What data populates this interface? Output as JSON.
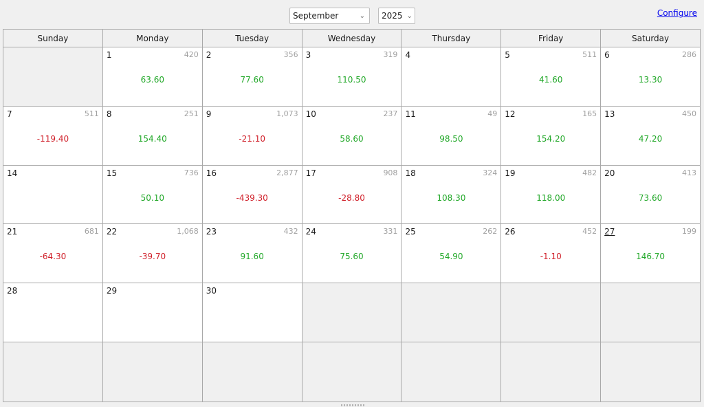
{
  "toolbar": {
    "month": "September",
    "year": "2025",
    "configure_label": "Configure"
  },
  "weekdays": [
    "Sunday",
    "Monday",
    "Tuesday",
    "Wednesday",
    "Thursday",
    "Friday",
    "Saturday"
  ],
  "colors": {
    "positive": "#22a829",
    "negative": "#d0202a",
    "count": "#a0a0a0",
    "link": "#0000ee"
  },
  "weeks": [
    [
      null,
      {
        "day": "1",
        "count": "420",
        "value": "63.60",
        "sign": "pos"
      },
      {
        "day": "2",
        "count": "356",
        "value": "77.60",
        "sign": "pos"
      },
      {
        "day": "3",
        "count": "319",
        "value": "110.50",
        "sign": "pos"
      },
      {
        "day": "4",
        "count": "",
        "value": "",
        "sign": ""
      },
      {
        "day": "5",
        "count": "511",
        "value": "41.60",
        "sign": "pos"
      },
      {
        "day": "6",
        "count": "286",
        "value": "13.30",
        "sign": "pos"
      }
    ],
    [
      {
        "day": "7",
        "count": "511",
        "value": "-119.40",
        "sign": "neg"
      },
      {
        "day": "8",
        "count": "251",
        "value": "154.40",
        "sign": "pos"
      },
      {
        "day": "9",
        "count": "1,073",
        "value": "-21.10",
        "sign": "neg"
      },
      {
        "day": "10",
        "count": "237",
        "value": "58.60",
        "sign": "pos"
      },
      {
        "day": "11",
        "count": "49",
        "value": "98.50",
        "sign": "pos"
      },
      {
        "day": "12",
        "count": "165",
        "value": "154.20",
        "sign": "pos"
      },
      {
        "day": "13",
        "count": "450",
        "value": "47.20",
        "sign": "pos"
      }
    ],
    [
      {
        "day": "14",
        "count": "",
        "value": "",
        "sign": ""
      },
      {
        "day": "15",
        "count": "736",
        "value": "50.10",
        "sign": "pos"
      },
      {
        "day": "16",
        "count": "2,877",
        "value": "-439.30",
        "sign": "neg"
      },
      {
        "day": "17",
        "count": "908",
        "value": "-28.80",
        "sign": "neg"
      },
      {
        "day": "18",
        "count": "324",
        "value": "108.30",
        "sign": "pos"
      },
      {
        "day": "19",
        "count": "482",
        "value": "118.00",
        "sign": "pos"
      },
      {
        "day": "20",
        "count": "413",
        "value": "73.60",
        "sign": "pos"
      }
    ],
    [
      {
        "day": "21",
        "count": "681",
        "value": "-64.30",
        "sign": "neg"
      },
      {
        "day": "22",
        "count": "1,068",
        "value": "-39.70",
        "sign": "neg"
      },
      {
        "day": "23",
        "count": "432",
        "value": "91.60",
        "sign": "pos"
      },
      {
        "day": "24",
        "count": "331",
        "value": "75.60",
        "sign": "pos"
      },
      {
        "day": "25",
        "count": "262",
        "value": "54.90",
        "sign": "pos"
      },
      {
        "day": "26",
        "count": "452",
        "value": "-1.10",
        "sign": "neg"
      },
      {
        "day": "27",
        "count": "199",
        "value": "146.70",
        "sign": "pos",
        "today": true
      }
    ],
    [
      {
        "day": "28",
        "count": "",
        "value": "",
        "sign": ""
      },
      {
        "day": "29",
        "count": "",
        "value": "",
        "sign": ""
      },
      {
        "day": "30",
        "count": "",
        "value": "",
        "sign": ""
      },
      null,
      null,
      null,
      null
    ],
    [
      null,
      null,
      null,
      null,
      null,
      null,
      null
    ]
  ]
}
